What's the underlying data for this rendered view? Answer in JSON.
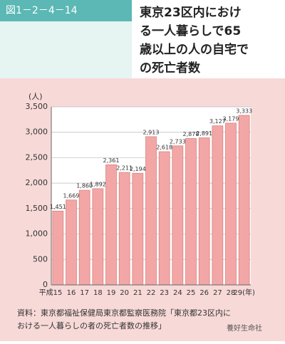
{
  "header": {
    "figure_id": "図1－2－4－14",
    "title_lines": [
      "東京23区内におけ",
      "る一人暮らしで65",
      "歳以上の人の自宅で",
      "の死亡者数"
    ]
  },
  "chart_data": {
    "type": "bar",
    "y_label": "(人)",
    "categories": [
      "平成15",
      "16",
      "17",
      "18",
      "19",
      "20",
      "21",
      "22",
      "23",
      "24",
      "25",
      "26",
      "27",
      "28",
      "29(年)"
    ],
    "values": [
      1451,
      1669,
      1860,
      1892,
      2361,
      2211,
      2194,
      2913,
      2618,
      2733,
      2878,
      2891,
      3127,
      3179,
      3333
    ],
    "value_labels": [
      "1,451",
      "1,669",
      "1,860",
      "1,892",
      "2,361",
      "2,211",
      "2,194",
      "2,913",
      "2,618",
      "2,733",
      "2,878",
      "2,891",
      "3,127",
      "3,179",
      "3,333"
    ],
    "color": "#f2a7a6",
    "ylim": [
      0,
      3500
    ],
    "yticks": [
      0,
      500,
      {
        "value": 1000,
        "label": "1,000"
      },
      {
        "value": 1500,
        "label": "1,500"
      },
      {
        "value": 2000,
        "label": "2,000"
      },
      {
        "value": 2500,
        "label": "2,500"
      },
      {
        "value": 3000,
        "label": "3,000"
      },
      {
        "value": 3500,
        "label": "3,500"
      }
    ],
    "grid": true
  },
  "source_lines": [
    "資料：東京都福祉保健局東京都監察医務院「東京都23区内に",
    "おける一人暮らしの者の死亡者数の推移」"
  ],
  "watermark": "養好生命社"
}
